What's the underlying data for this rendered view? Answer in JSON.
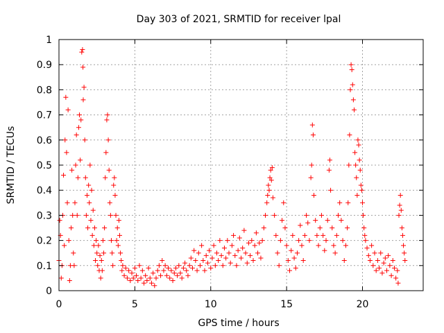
{
  "chart_data": {
    "type": "scatter",
    "title": "Day 303 of 2021, SRMTID for receiver lpal",
    "xlabel": "GPS time / hours",
    "ylabel": "SRMTID / TECUs",
    "xlim": [
      0,
      24
    ],
    "ylim": [
      0,
      1
    ],
    "grid": true,
    "marker": "plus",
    "color": "#ff0000",
    "x_ticks": [
      {
        "value": 0,
        "label": "0"
      },
      {
        "value": 5,
        "label": "5"
      },
      {
        "value": 10,
        "label": "10"
      },
      {
        "value": 15,
        "label": "15"
      },
      {
        "value": 20,
        "label": "20"
      }
    ],
    "y_ticks": [
      {
        "value": 0,
        "label": "0"
      },
      {
        "value": 0.1,
        "label": "0.1"
      },
      {
        "value": 0.2,
        "label": "0.2"
      },
      {
        "value": 0.3,
        "label": "0.3"
      },
      {
        "value": 0.4,
        "label": "0.4"
      },
      {
        "value": 0.5,
        "label": "0.5"
      },
      {
        "value": 0.6,
        "label": "0.6"
      },
      {
        "value": 0.7,
        "label": "0.7"
      },
      {
        "value": 0.8,
        "label": "0.8"
      },
      {
        "value": 0.9,
        "label": "0.9"
      },
      {
        "value": 1,
        "label": "1"
      }
    ],
    "points": [
      [
        0.0,
        0.12
      ],
      [
        0.05,
        0.28
      ],
      [
        0.1,
        0.22
      ],
      [
        0.15,
        0.05
      ],
      [
        0.2,
        0.1
      ],
      [
        0.25,
        0.3
      ],
      [
        0.3,
        0.46
      ],
      [
        0.35,
        0.18
      ],
      [
        0.4,
        0.6
      ],
      [
        0.45,
        0.77
      ],
      [
        0.5,
        0.55
      ],
      [
        0.55,
        0.35
      ],
      [
        0.6,
        0.72
      ],
      [
        0.65,
        0.2
      ],
      [
        0.7,
        0.04
      ],
      [
        0.75,
        0.1
      ],
      [
        0.8,
        0.25
      ],
      [
        0.85,
        0.48
      ],
      [
        0.9,
        0.3
      ],
      [
        0.95,
        0.15
      ],
      [
        1.0,
        0.1
      ],
      [
        1.05,
        0.35
      ],
      [
        1.1,
        0.5
      ],
      [
        1.15,
        0.62
      ],
      [
        1.2,
        0.3
      ],
      [
        1.25,
        0.45
      ],
      [
        1.3,
        0.65
      ],
      [
        1.35,
        0.7
      ],
      [
        1.4,
        0.52
      ],
      [
        1.45,
        0.68
      ],
      [
        1.5,
        0.95
      ],
      [
        1.55,
        0.96
      ],
      [
        1.58,
        0.89
      ],
      [
        1.6,
        0.76
      ],
      [
        1.65,
        0.81
      ],
      [
        1.7,
        0.6
      ],
      [
        1.75,
        0.45
      ],
      [
        1.8,
        0.3
      ],
      [
        1.85,
        0.38
      ],
      [
        1.9,
        0.25
      ],
      [
        1.95,
        0.42
      ],
      [
        2.0,
        0.35
      ],
      [
        2.05,
        0.5
      ],
      [
        2.1,
        0.28
      ],
      [
        2.15,
        0.4
      ],
      [
        2.2,
        0.22
      ],
      [
        2.25,
        0.32
      ],
      [
        2.3,
        0.18
      ],
      [
        2.35,
        0.25
      ],
      [
        2.4,
        0.12
      ],
      [
        2.45,
        0.2
      ],
      [
        2.5,
        0.15
      ],
      [
        2.55,
        0.1
      ],
      [
        2.6,
        0.18
      ],
      [
        2.65,
        0.08
      ],
      [
        2.7,
        0.14
      ],
      [
        2.75,
        0.05
      ],
      [
        2.8,
        0.12
      ],
      [
        2.85,
        0.08
      ],
      [
        2.9,
        0.2
      ],
      [
        2.95,
        0.15
      ],
      [
        3.0,
        0.25
      ],
      [
        3.05,
        0.45
      ],
      [
        3.1,
        0.55
      ],
      [
        3.15,
        0.68
      ],
      [
        3.2,
        0.7
      ],
      [
        3.25,
        0.6
      ],
      [
        3.3,
        0.48
      ],
      [
        3.35,
        0.35
      ],
      [
        3.4,
        0.3
      ],
      [
        3.45,
        0.2
      ],
      [
        3.5,
        0.15
      ],
      [
        3.55,
        0.1
      ],
      [
        3.6,
        0.42
      ],
      [
        3.65,
        0.45
      ],
      [
        3.7,
        0.38
      ],
      [
        3.75,
        0.3
      ],
      [
        3.8,
        0.2
      ],
      [
        3.85,
        0.25
      ],
      [
        3.9,
        0.18
      ],
      [
        3.95,
        0.28
      ],
      [
        4.0,
        0.22
      ],
      [
        4.05,
        0.15
      ],
      [
        4.1,
        0.12
      ],
      [
        4.15,
        0.08
      ],
      [
        4.2,
        0.1
      ],
      [
        4.3,
        0.06
      ],
      [
        4.4,
        0.09
      ],
      [
        4.5,
        0.05
      ],
      [
        4.6,
        0.08
      ],
      [
        4.7,
        0.04
      ],
      [
        4.8,
        0.07
      ],
      [
        4.9,
        0.05
      ],
      [
        5.0,
        0.09
      ],
      [
        5.1,
        0.06
      ],
      [
        5.2,
        0.04
      ],
      [
        5.3,
        0.1
      ],
      [
        5.4,
        0.05
      ],
      [
        5.5,
        0.08
      ],
      [
        5.6,
        0.03
      ],
      [
        5.7,
        0.06
      ],
      [
        5.8,
        0.04
      ],
      [
        5.9,
        0.09
      ],
      [
        6.0,
        0.05
      ],
      [
        6.1,
        0.03
      ],
      [
        6.2,
        0.07
      ],
      [
        6.3,
        0.02
      ],
      [
        6.4,
        0.05
      ],
      [
        6.5,
        0.08
      ],
      [
        6.6,
        0.1
      ],
      [
        6.7,
        0.06
      ],
      [
        6.8,
        0.12
      ],
      [
        6.9,
        0.08
      ],
      [
        7.0,
        0.1
      ],
      [
        7.1,
        0.06
      ],
      [
        7.2,
        0.09
      ],
      [
        7.3,
        0.05
      ],
      [
        7.4,
        0.08
      ],
      [
        7.5,
        0.04
      ],
      [
        7.6,
        0.07
      ],
      [
        7.7,
        0.09
      ],
      [
        7.8,
        0.06
      ],
      [
        7.9,
        0.1
      ],
      [
        8.0,
        0.07
      ],
      [
        8.1,
        0.05
      ],
      [
        8.2,
        0.09
      ],
      [
        8.3,
        0.11
      ],
      [
        8.4,
        0.08
      ],
      [
        8.5,
        0.06
      ],
      [
        8.6,
        0.1
      ],
      [
        8.7,
        0.13
      ],
      [
        8.8,
        0.09
      ],
      [
        8.9,
        0.16
      ],
      [
        9.0,
        0.12
      ],
      [
        9.1,
        0.08
      ],
      [
        9.2,
        0.15
      ],
      [
        9.3,
        0.1
      ],
      [
        9.4,
        0.18
      ],
      [
        9.5,
        0.12
      ],
      [
        9.6,
        0.08
      ],
      [
        9.7,
        0.14
      ],
      [
        9.8,
        0.11
      ],
      [
        9.9,
        0.16
      ],
      [
        10.0,
        0.09
      ],
      [
        10.1,
        0.13
      ],
      [
        10.2,
        0.18
      ],
      [
        10.3,
        0.1
      ],
      [
        10.4,
        0.15
      ],
      [
        10.5,
        0.12
      ],
      [
        10.6,
        0.2
      ],
      [
        10.7,
        0.14
      ],
      [
        10.8,
        0.1
      ],
      [
        10.9,
        0.17
      ],
      [
        11.0,
        0.13
      ],
      [
        11.1,
        0.2
      ],
      [
        11.2,
        0.15
      ],
      [
        11.3,
        0.11
      ],
      [
        11.4,
        0.18
      ],
      [
        11.5,
        0.22
      ],
      [
        11.6,
        0.14
      ],
      [
        11.7,
        0.1
      ],
      [
        11.8,
        0.16
      ],
      [
        11.9,
        0.21
      ],
      [
        12.0,
        0.13
      ],
      [
        12.1,
        0.17
      ],
      [
        12.2,
        0.24
      ],
      [
        12.3,
        0.15
      ],
      [
        12.4,
        0.11
      ],
      [
        12.5,
        0.19
      ],
      [
        12.6,
        0.14
      ],
      [
        12.7,
        0.2
      ],
      [
        12.8,
        0.12
      ],
      [
        12.9,
        0.18
      ],
      [
        13.0,
        0.23
      ],
      [
        13.1,
        0.15
      ],
      [
        13.2,
        0.19
      ],
      [
        13.3,
        0.13
      ],
      [
        13.4,
        0.2
      ],
      [
        13.5,
        0.25
      ],
      [
        13.6,
        0.3
      ],
      [
        13.7,
        0.35
      ],
      [
        13.75,
        0.38
      ],
      [
        13.8,
        0.42
      ],
      [
        13.85,
        0.4
      ],
      [
        13.9,
        0.45
      ],
      [
        13.95,
        0.48
      ],
      [
        14.0,
        0.44
      ],
      [
        14.05,
        0.49
      ],
      [
        14.1,
        0.37
      ],
      [
        14.2,
        0.3
      ],
      [
        14.3,
        0.22
      ],
      [
        14.4,
        0.15
      ],
      [
        14.5,
        0.1
      ],
      [
        14.6,
        0.2
      ],
      [
        14.7,
        0.28
      ],
      [
        14.8,
        0.35
      ],
      [
        14.9,
        0.25
      ],
      [
        15.0,
        0.18
      ],
      [
        15.1,
        0.12
      ],
      [
        15.2,
        0.08
      ],
      [
        15.3,
        0.16
      ],
      [
        15.4,
        0.22
      ],
      [
        15.5,
        0.13
      ],
      [
        15.6,
        0.09
      ],
      [
        15.7,
        0.15
      ],
      [
        15.8,
        0.2
      ],
      [
        15.9,
        0.26
      ],
      [
        16.0,
        0.18
      ],
      [
        16.1,
        0.12
      ],
      [
        16.2,
        0.22
      ],
      [
        16.3,
        0.3
      ],
      [
        16.4,
        0.27
      ],
      [
        16.5,
        0.2
      ],
      [
        16.6,
        0.45
      ],
      [
        16.65,
        0.5
      ],
      [
        16.7,
        0.66
      ],
      [
        16.75,
        0.62
      ],
      [
        16.8,
        0.38
      ],
      [
        16.9,
        0.28
      ],
      [
        17.0,
        0.22
      ],
      [
        17.1,
        0.18
      ],
      [
        17.2,
        0.25
      ],
      [
        17.3,
        0.3
      ],
      [
        17.4,
        0.22
      ],
      [
        17.5,
        0.16
      ],
      [
        17.6,
        0.2
      ],
      [
        17.7,
        0.28
      ],
      [
        17.8,
        0.48
      ],
      [
        17.85,
        0.52
      ],
      [
        17.9,
        0.4
      ],
      [
        18.0,
        0.25
      ],
      [
        18.1,
        0.18
      ],
      [
        18.2,
        0.15
      ],
      [
        18.3,
        0.22
      ],
      [
        18.4,
        0.3
      ],
      [
        18.5,
        0.35
      ],
      [
        18.6,
        0.28
      ],
      [
        18.7,
        0.2
      ],
      [
        18.8,
        0.12
      ],
      [
        18.9,
        0.18
      ],
      [
        19.0,
        0.25
      ],
      [
        19.05,
        0.35
      ],
      [
        19.1,
        0.5
      ],
      [
        19.15,
        0.62
      ],
      [
        19.2,
        0.8
      ],
      [
        19.25,
        0.9
      ],
      [
        19.3,
        0.88
      ],
      [
        19.35,
        0.82
      ],
      [
        19.4,
        0.76
      ],
      [
        19.45,
        0.72
      ],
      [
        19.5,
        0.55
      ],
      [
        19.55,
        0.5
      ],
      [
        19.6,
        0.45
      ],
      [
        19.65,
        0.38
      ],
      [
        19.7,
        0.6
      ],
      [
        19.75,
        0.58
      ],
      [
        19.8,
        0.52
      ],
      [
        19.85,
        0.48
      ],
      [
        19.9,
        0.42
      ],
      [
        19.95,
        0.4
      ],
      [
        20.0,
        0.35
      ],
      [
        20.05,
        0.3
      ],
      [
        20.1,
        0.25
      ],
      [
        20.15,
        0.22
      ],
      [
        20.2,
        0.2
      ],
      [
        20.3,
        0.17
      ],
      [
        20.4,
        0.14
      ],
      [
        20.5,
        0.12
      ],
      [
        20.6,
        0.18
      ],
      [
        20.7,
        0.1
      ],
      [
        20.8,
        0.15
      ],
      [
        20.9,
        0.08
      ],
      [
        21.0,
        0.12
      ],
      [
        21.1,
        0.09
      ],
      [
        21.2,
        0.15
      ],
      [
        21.3,
        0.07
      ],
      [
        21.4,
        0.11
      ],
      [
        21.5,
        0.13
      ],
      [
        21.6,
        0.08
      ],
      [
        21.7,
        0.14
      ],
      [
        21.8,
        0.1
      ],
      [
        21.9,
        0.06
      ],
      [
        22.0,
        0.12
      ],
      [
        22.1,
        0.09
      ],
      [
        22.2,
        0.05
      ],
      [
        22.3,
        0.08
      ],
      [
        22.35,
        0.03
      ],
      [
        22.4,
        0.3
      ],
      [
        22.45,
        0.34
      ],
      [
        22.5,
        0.38
      ],
      [
        22.55,
        0.32
      ],
      [
        22.6,
        0.25
      ],
      [
        22.65,
        0.22
      ],
      [
        22.7,
        0.18
      ],
      [
        22.75,
        0.15
      ],
      [
        22.8,
        0.12
      ]
    ]
  }
}
